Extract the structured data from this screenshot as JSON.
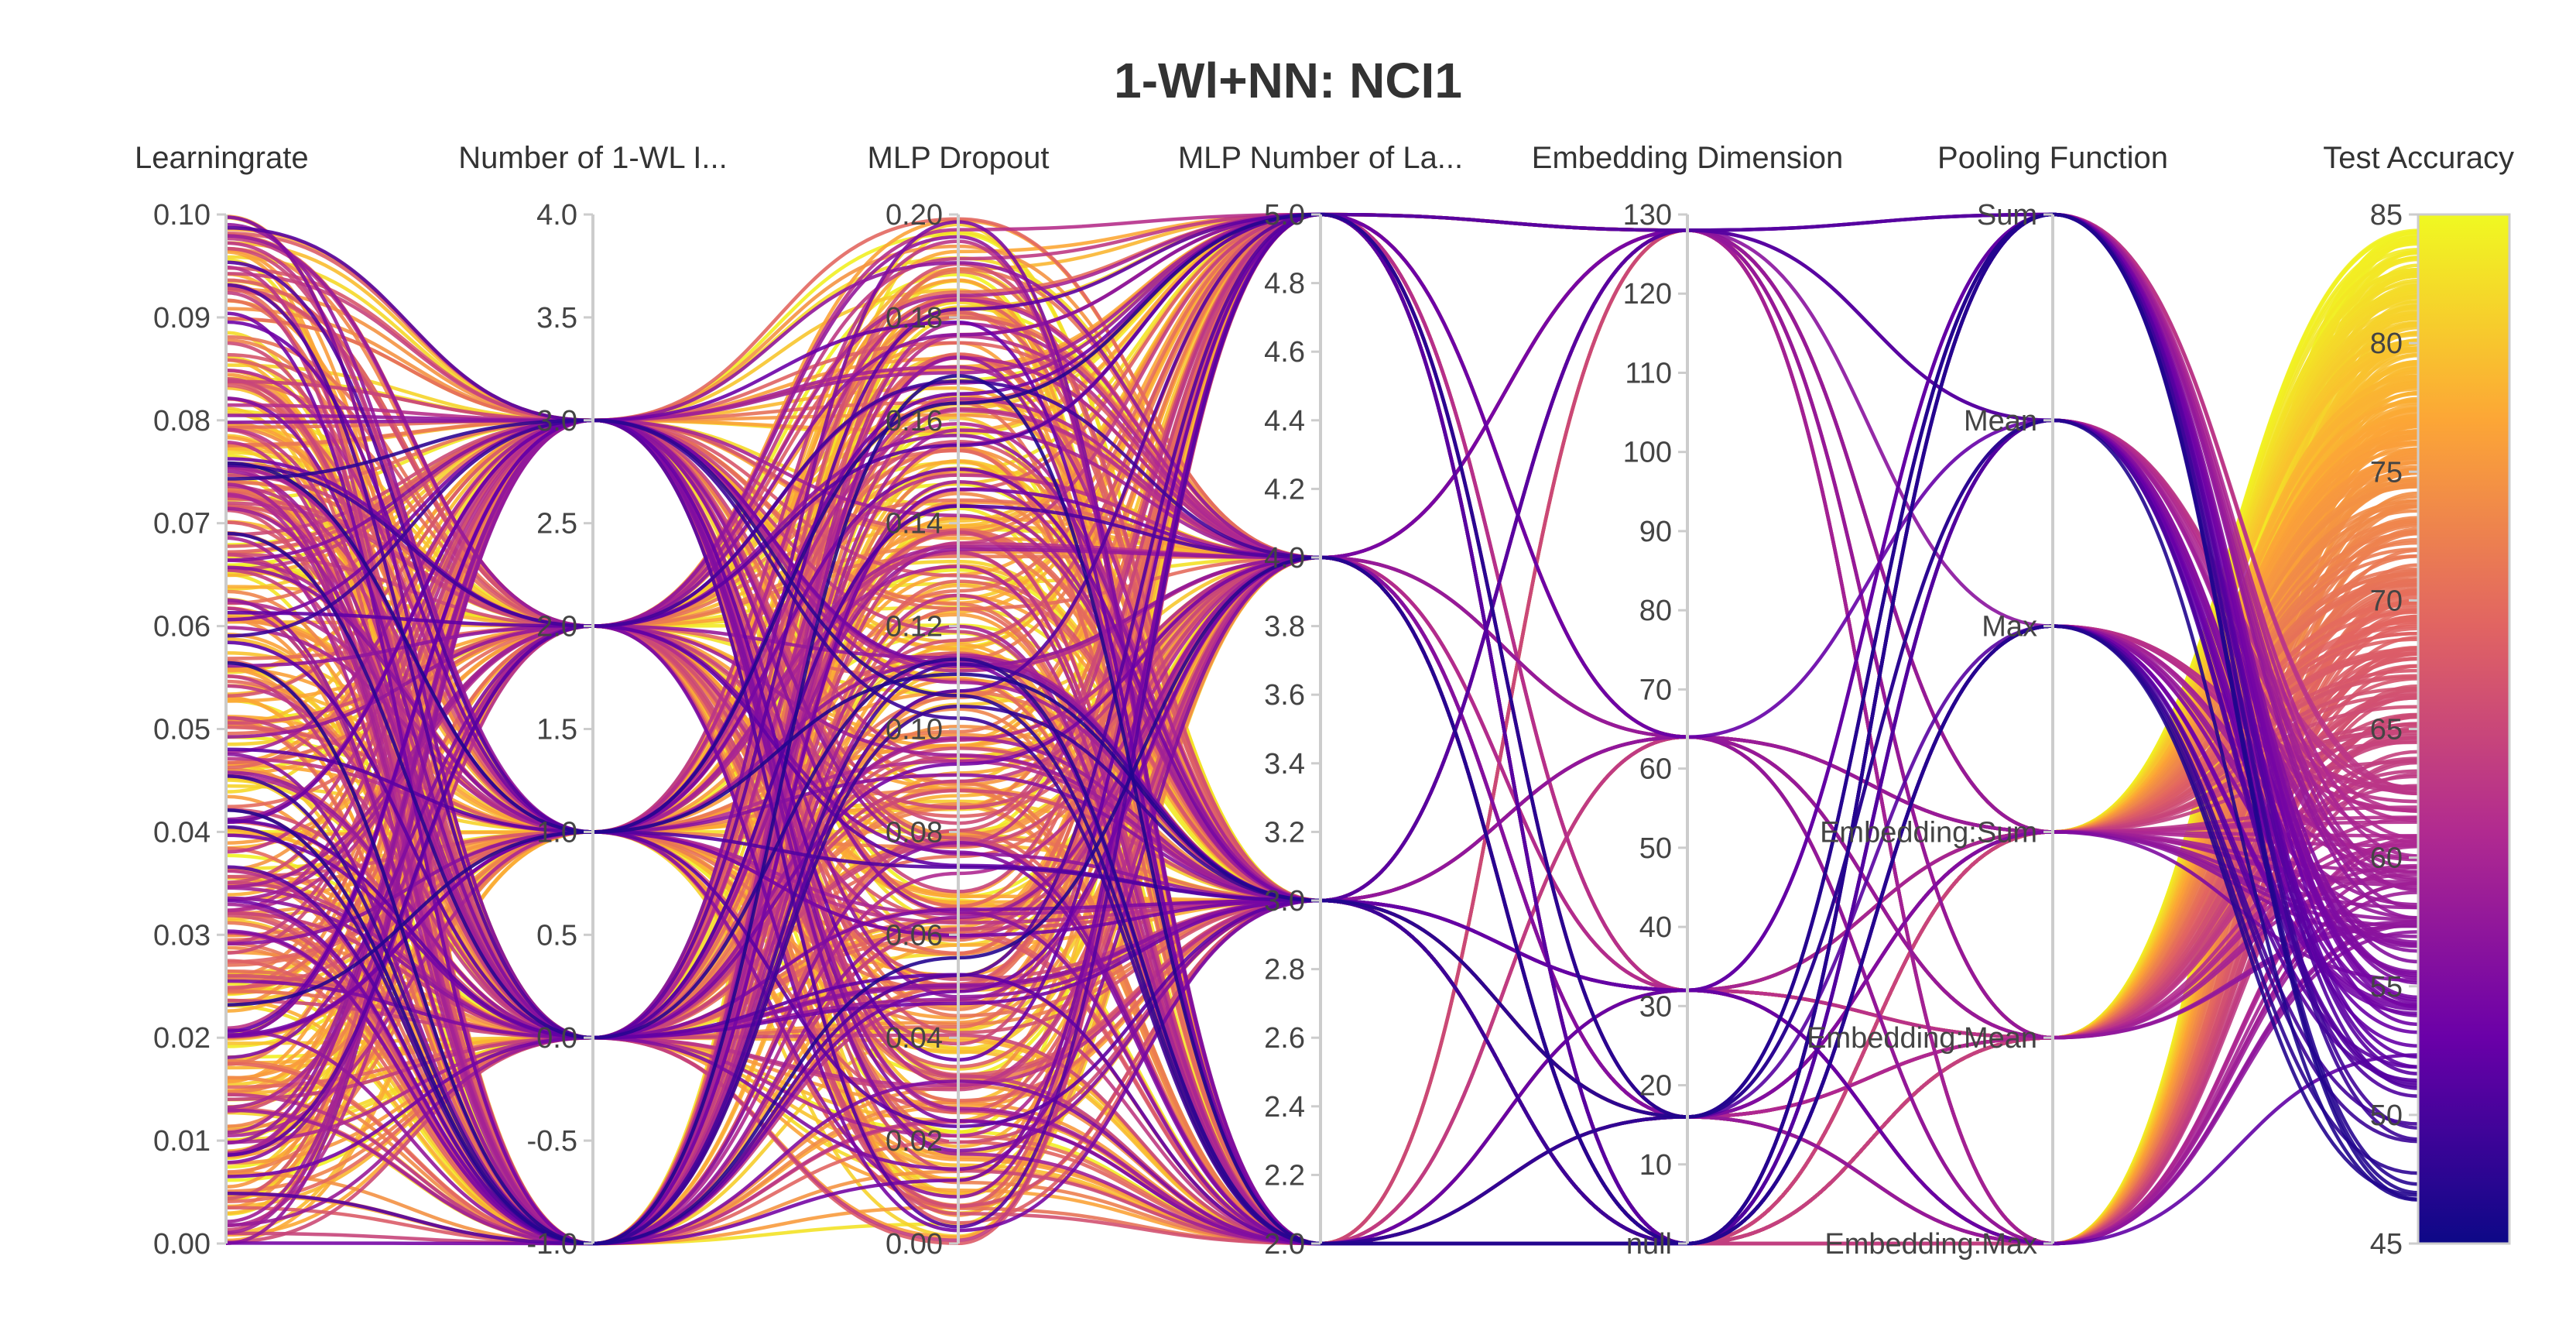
{
  "chart_data": {
    "type": "parallel_coordinates",
    "title": "1-Wl+NN: NCI1",
    "color_by": "Test Accuracy",
    "colorscale": [
      "#0d0887",
      "#6a00a8",
      "#b12a90",
      "#e16462",
      "#fca636",
      "#f0f921"
    ],
    "axes": [
      {
        "key": "lr",
        "label": "Learningrate",
        "range": [
          0,
          0.1
        ],
        "ticks": [
          "0.10",
          "0.09",
          "0.08",
          "0.07",
          "0.06",
          "0.05",
          "0.04",
          "0.03",
          "0.02",
          "0.01",
          "0.00"
        ]
      },
      {
        "key": "wl",
        "label": "Number of 1-WL I...",
        "range": [
          -1,
          4
        ],
        "ticks": [
          "4.0",
          "3.5",
          "3.0",
          "2.5",
          "2.0",
          "1.5",
          "1.0",
          "0.5",
          "0.0",
          "-0.5",
          "-1.0"
        ]
      },
      {
        "key": "dropout",
        "label": "MLP Dropout",
        "range": [
          0,
          0.2
        ],
        "ticks": [
          "0.20",
          "0.18",
          "0.16",
          "0.14",
          "0.12",
          "0.10",
          "0.08",
          "0.06",
          "0.04",
          "0.02",
          "0.00"
        ]
      },
      {
        "key": "layers",
        "label": "MLP Number of La...",
        "range": [
          2,
          5
        ],
        "ticks": [
          "5.0",
          "4.8",
          "4.6",
          "4.4",
          "4.2",
          "4.0",
          "3.8",
          "3.6",
          "3.4",
          "3.2",
          "3.0",
          "2.8",
          "2.6",
          "2.4",
          "2.2",
          "2.0"
        ]
      },
      {
        "key": "emb",
        "label": "Embedding Dimension",
        "range": [
          0,
          130
        ],
        "categorical_bottom": "null",
        "ticks": [
          "130",
          "120",
          "110",
          "100",
          "90",
          "80",
          "70",
          "60",
          "50",
          "40",
          "30",
          "20",
          "10",
          "null"
        ]
      },
      {
        "key": "pool",
        "label": "Pooling Function",
        "categorical": true,
        "ticks": [
          "Sum",
          "Mean",
          "Max",
          "Embedding:Sum",
          "Embedding:Mean",
          "Embedding:Max"
        ]
      },
      {
        "key": "acc",
        "label": "Test Accuracy",
        "range": [
          45,
          85
        ],
        "ticks": [
          "85",
          "80",
          "75",
          "70",
          "65",
          "60",
          "55",
          "50",
          "45"
        ],
        "colorbar": true
      }
    ]
  }
}
